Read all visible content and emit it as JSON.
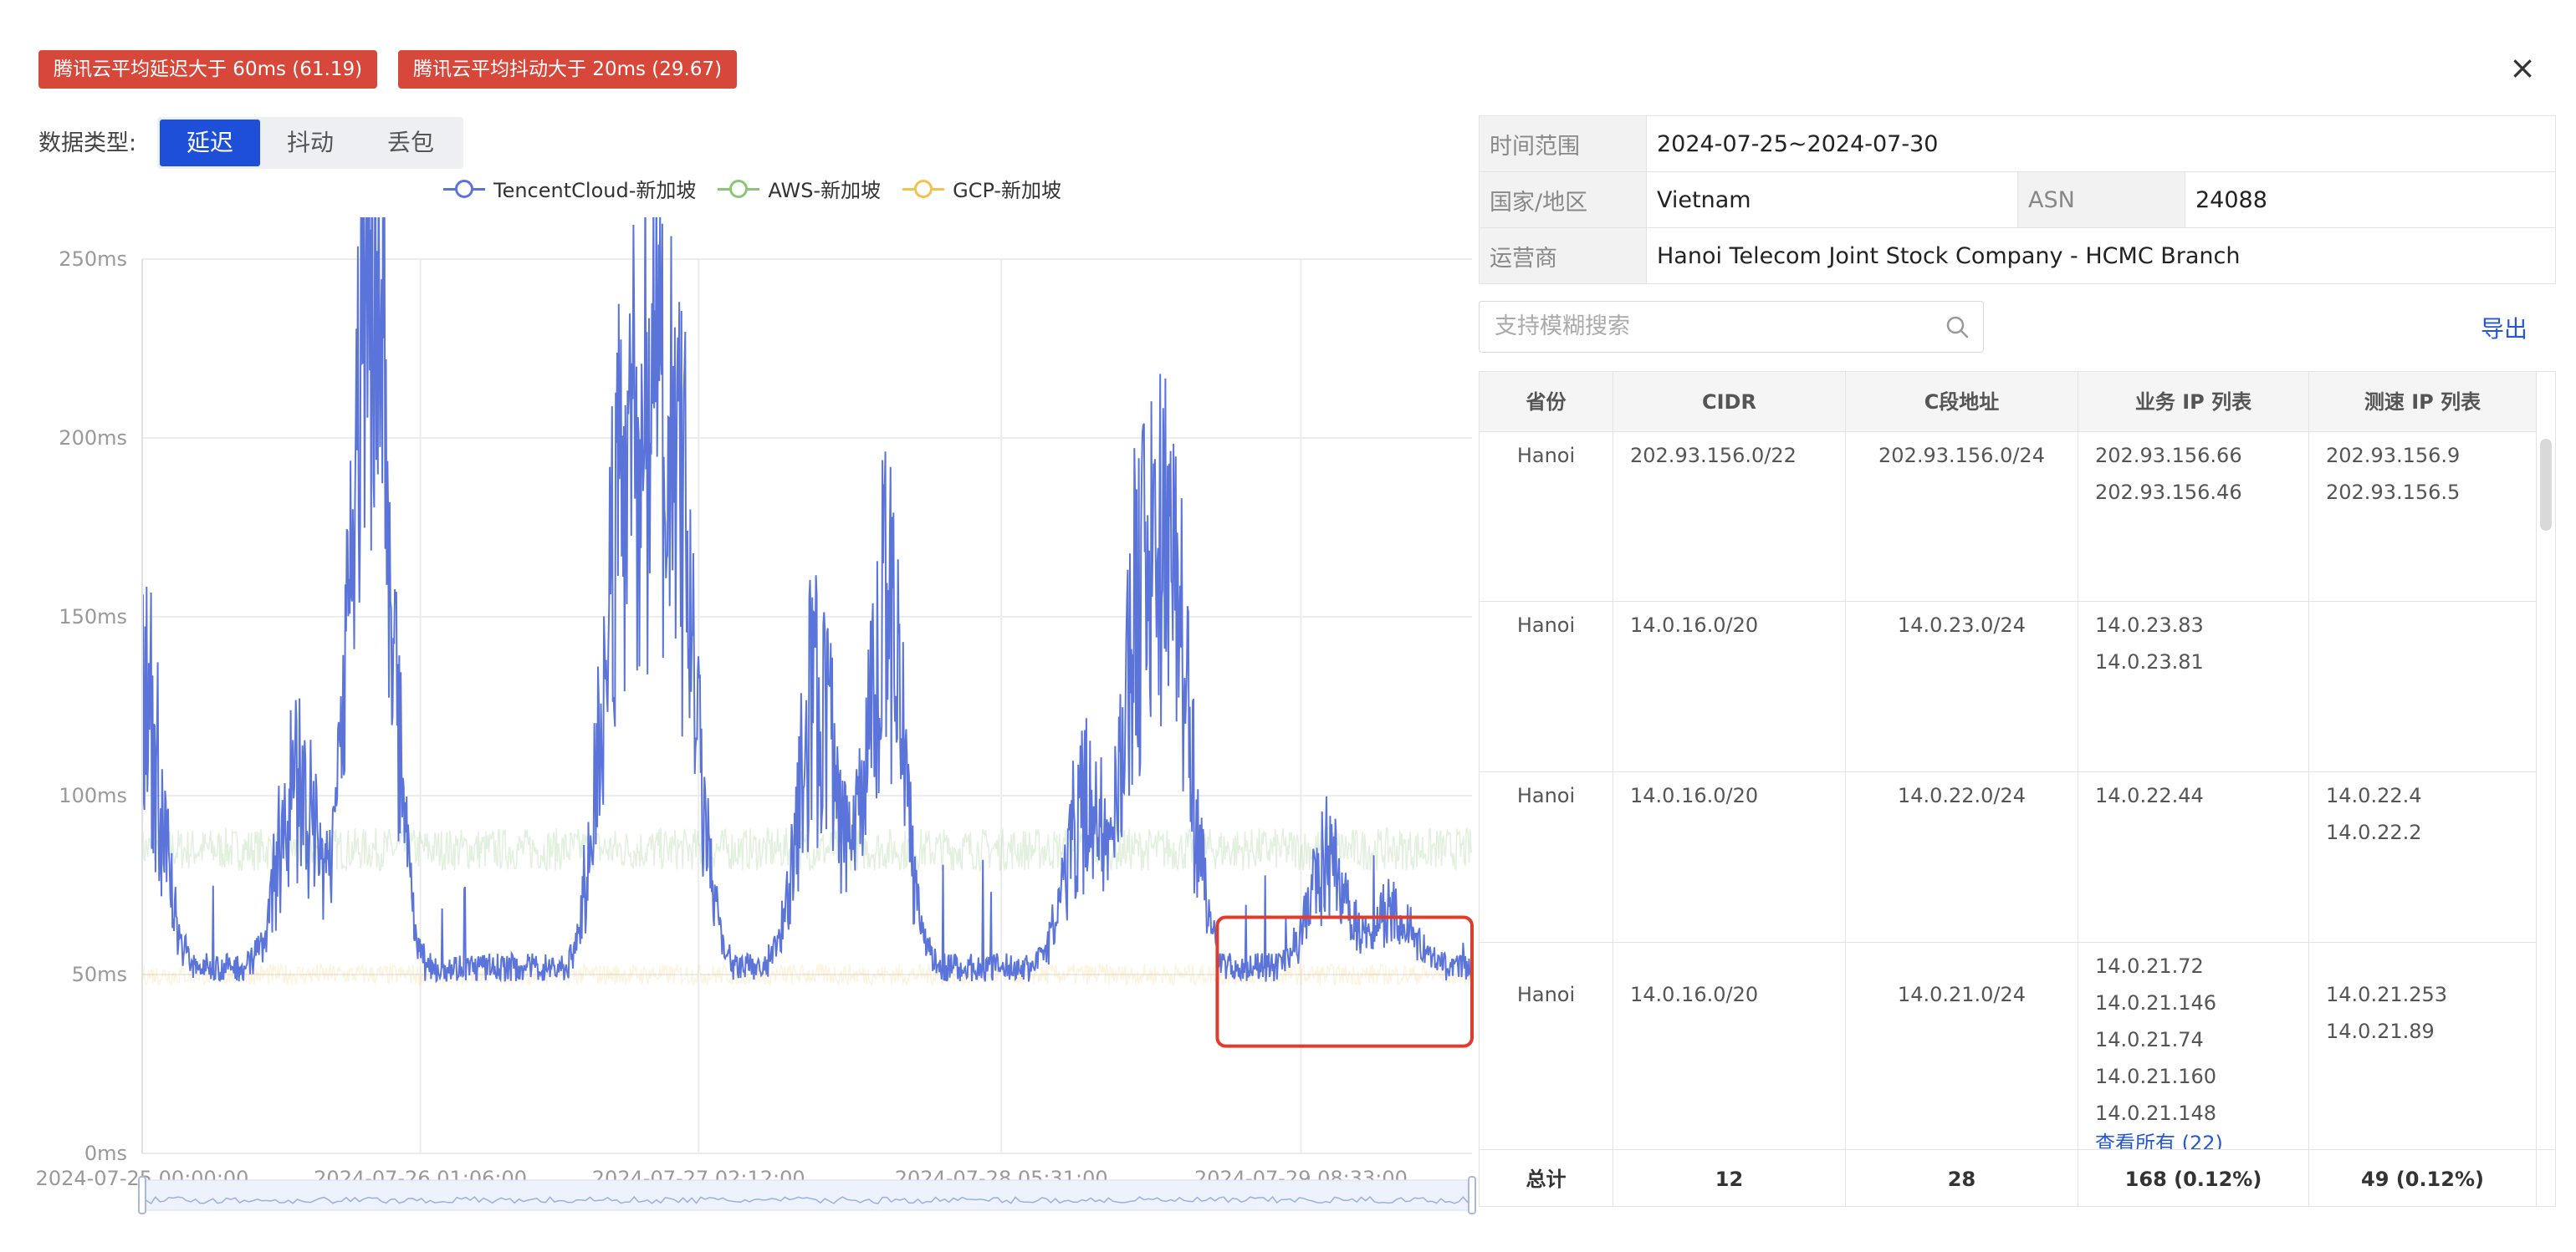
{
  "alerts": [
    "腾讯云平均延迟大于 60ms (61.19)",
    "腾讯云平均抖动大于 20ms (29.67)"
  ],
  "close_icon": "×",
  "data_type": {
    "label": "数据类型:",
    "options": [
      "延迟",
      "抖动",
      "丢包"
    ],
    "selected": "延迟"
  },
  "legend": [
    {
      "name": "TencentCloud-新加坡",
      "color": "#5b74d9"
    },
    {
      "name": "AWS-新加坡",
      "color": "#8cc57a"
    },
    {
      "name": "GCP-新加坡",
      "color": "#f2c24f"
    }
  ],
  "chart_data": {
    "type": "line",
    "y_ticks": [
      "0ms",
      "50ms",
      "100ms",
      "150ms",
      "200ms",
      "250ms"
    ],
    "ylim": [
      0,
      250
    ],
    "y_unit": "ms",
    "x_ticks": [
      "2024-07-25 00:00:00",
      "2024-07-26 01:06:00",
      "2024-07-27 02:12:00",
      "2024-07-28 05:31:00",
      "2024-07-29 08:33:00"
    ],
    "xlim": [
      "2024-07-25 00:00:00",
      "2024-07-29 23:59:00"
    ],
    "grid": true,
    "legend_position": "top",
    "series": [
      {
        "name": "TencentCloud-新加坡",
        "color": "#5b74d9",
        "baseline": 52,
        "spikes": [
          {
            "x": "2024-07-25 00:00:00",
            "y": 171
          },
          {
            "x": "2024-07-25 21:00:00",
            "y": 244
          },
          {
            "x": "2024-07-25 20:00:00",
            "y": 183
          },
          {
            "x": "2024-07-25 14:00:00",
            "y": 133
          },
          {
            "x": "2024-07-26 19:00:00",
            "y": 216
          },
          {
            "x": "2024-07-26 22:00:00",
            "y": 219
          },
          {
            "x": "2024-07-27 00:30:00",
            "y": 209
          },
          {
            "x": "2024-07-27 13:00:00",
            "y": 172
          },
          {
            "x": "2024-07-27 19:00:00",
            "y": 201
          },
          {
            "x": "2024-07-28 13:00:00",
            "y": 122
          },
          {
            "x": "2024-07-28 18:00:00",
            "y": 182
          },
          {
            "x": "2024-07-28 21:00:00",
            "y": 200
          },
          {
            "x": "2024-07-29 11:00:00",
            "y": 97
          },
          {
            "x": "2024-07-29 17:00:00",
            "y": 78
          }
        ]
      },
      {
        "name": "AWS-新加坡",
        "color": "#8cc57a",
        "baseline": 85
      },
      {
        "name": "GCP-新加坡",
        "color": "#f2c24f",
        "baseline": 50
      }
    ],
    "highlight": {
      "x_from": "2024-07-29 01:00:00",
      "x_to": "2024-07-29 23:59:00",
      "y_from": 30,
      "y_to": 66,
      "color": "#e03b2c"
    }
  },
  "info": {
    "time_range_label": "时间范围",
    "time_range": "2024-07-25~2024-07-30",
    "country_label": "国家/地区",
    "country": "Vietnam",
    "asn_label": "ASN",
    "asn": "24088",
    "isp_label": "运营商",
    "isp": "Hanoi Telecom Joint Stock Company - HCMC Branch"
  },
  "search": {
    "placeholder": "支持模糊搜索"
  },
  "export_label": "导出",
  "table": {
    "headers": [
      "省份",
      "CIDR",
      "C段地址",
      "业务 IP 列表",
      "测速 IP 列表"
    ],
    "rows": [
      {
        "province": "Hanoi",
        "cidr": "202.93.156.0/22",
        "c_block": "202.93.156.0/24",
        "biz_ips": [
          "202.93.156.66",
          "202.93.156.46"
        ],
        "speed_ips": [
          "202.93.156.9",
          "202.93.156.5"
        ]
      },
      {
        "province": "Hanoi",
        "cidr": "14.0.16.0/20",
        "c_block": "14.0.23.0/24",
        "biz_ips": [
          "14.0.23.83",
          "14.0.23.81"
        ],
        "speed_ips": []
      },
      {
        "province": "Hanoi",
        "cidr": "14.0.16.0/20",
        "c_block": "14.0.22.0/24",
        "biz_ips": [
          "14.0.22.44"
        ],
        "speed_ips": [
          "14.0.22.4",
          "14.0.22.2"
        ]
      },
      {
        "province": "Hanoi",
        "cidr": "14.0.16.0/20",
        "c_block": "14.0.21.0/24",
        "biz_ips": [
          "14.0.21.72",
          "14.0.21.146",
          "14.0.21.74",
          "14.0.21.160",
          "14.0.21.148"
        ],
        "speed_ips": [
          "14.0.21.253",
          "14.0.21.89"
        ],
        "more": "查看所有 (22)"
      }
    ],
    "total": {
      "label": "总计",
      "cidr": "12",
      "c_block": "28",
      "biz": "168 (0.12%)",
      "speed": "49 (0.12%)"
    }
  }
}
